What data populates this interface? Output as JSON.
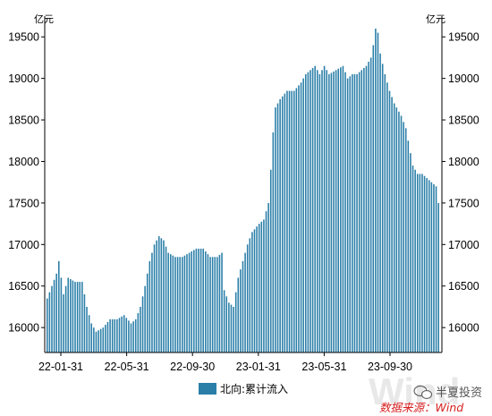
{
  "chart_data": {
    "type": "bar",
    "unit_left": "亿元",
    "unit_right": "亿元",
    "ylim": [
      15700,
      19750
    ],
    "yticks": [
      16000,
      16500,
      17000,
      17500,
      18000,
      18500,
      19000,
      19500
    ],
    "xticks": [
      "22-01-31",
      "22-05-31",
      "22-09-30",
      "23-01-31",
      "23-05-31",
      "23-09-30"
    ],
    "series": [
      {
        "name": "北向:累计流入",
        "color": "#2a7ea8",
        "anchors": [
          [
            0,
            16350
          ],
          [
            2,
            16500
          ],
          [
            4,
            16650
          ],
          [
            5,
            16800
          ],
          [
            7,
            16400
          ],
          [
            9,
            16600
          ],
          [
            12,
            16550
          ],
          [
            15,
            16550
          ],
          [
            17,
            16250
          ],
          [
            19,
            16050
          ],
          [
            21,
            15950
          ],
          [
            24,
            16000
          ],
          [
            27,
            16100
          ],
          [
            30,
            16100
          ],
          [
            33,
            16150
          ],
          [
            36,
            16050
          ],
          [
            38,
            16100
          ],
          [
            40,
            16250
          ],
          [
            42,
            16500
          ],
          [
            44,
            16800
          ],
          [
            46,
            17000
          ],
          [
            48,
            17100
          ],
          [
            50,
            17050
          ],
          [
            52,
            16900
          ],
          [
            55,
            16850
          ],
          [
            58,
            16850
          ],
          [
            61,
            16900
          ],
          [
            64,
            16950
          ],
          [
            67,
            16950
          ],
          [
            70,
            16850
          ],
          [
            73,
            16850
          ],
          [
            75,
            16900
          ],
          [
            76,
            16450
          ],
          [
            78,
            16300
          ],
          [
            80,
            16250
          ],
          [
            82,
            16600
          ],
          [
            84,
            16800
          ],
          [
            86,
            17000
          ],
          [
            88,
            17150
          ],
          [
            91,
            17250
          ],
          [
            93,
            17300
          ],
          [
            95,
            17500
          ],
          [
            96,
            17900
          ],
          [
            97,
            18350
          ],
          [
            98,
            18650
          ],
          [
            100,
            18750
          ],
          [
            103,
            18850
          ],
          [
            106,
            18850
          ],
          [
            109,
            18950
          ],
          [
            111,
            19050
          ],
          [
            113,
            19100
          ],
          [
            115,
            19150
          ],
          [
            117,
            19050
          ],
          [
            119,
            19150
          ],
          [
            121,
            19050
          ],
          [
            124,
            19100
          ],
          [
            127,
            19150
          ],
          [
            129,
            19000
          ],
          [
            131,
            19050
          ],
          [
            133,
            19050
          ],
          [
            135,
            19100
          ],
          [
            137,
            19150
          ],
          [
            139,
            19250
          ],
          [
            140,
            19400
          ],
          [
            141,
            19600
          ],
          [
            142,
            19550
          ],
          [
            143,
            19300
          ],
          [
            145,
            19050
          ],
          [
            147,
            18850
          ],
          [
            149,
            18700
          ],
          [
            152,
            18550
          ],
          [
            154,
            18400
          ],
          [
            156,
            18100
          ],
          [
            157,
            17950
          ],
          [
            159,
            17850
          ],
          [
            161,
            17850
          ],
          [
            163,
            17800
          ],
          [
            165,
            17750
          ],
          [
            167,
            17700
          ],
          [
            168,
            17500
          ]
        ]
      }
    ]
  },
  "watermark": {
    "text": "半夏投资",
    "source": "数据来源：Wind"
  }
}
